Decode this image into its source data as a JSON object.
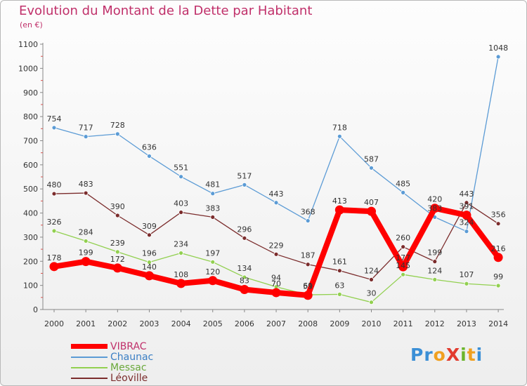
{
  "title": "Evolution du Montant de la Dette par Habitant",
  "unit_label": "(en €)",
  "logo": {
    "letters": [
      "P",
      "r",
      "o",
      "X",
      "i",
      "t",
      "i"
    ],
    "colors": [
      "#3b8fd6",
      "#3b8fd6",
      "#f0a020",
      "#e23b2e",
      "#6bb52b",
      "#f0a020",
      "#3b8fd6"
    ]
  },
  "chart_data": {
    "type": "line",
    "x": [
      "2000",
      "2001",
      "2002",
      "2003",
      "2004",
      "2005",
      "2006",
      "2007",
      "2008",
      "2009",
      "2010",
      "2011",
      "2012",
      "2013",
      "2014"
    ],
    "ylim": [
      0,
      1100
    ],
    "yticks": [
      0,
      100,
      200,
      300,
      400,
      500,
      600,
      700,
      800,
      900,
      1000,
      1100
    ],
    "grid": false,
    "legend_position": "bottom-left",
    "series": [
      {
        "name": "VIBRAC",
        "color": "#ff0000",
        "values": [
          178,
          199,
          172,
          140,
          108,
          120,
          83,
          70,
          59,
          413,
          407,
          177,
          420,
          391,
          216
        ],
        "labels": [
          "178",
          "199",
          "172",
          "140",
          "108",
          "120",
          "83",
          "70",
          "59",
          "413",
          "407",
          "177",
          "420",
          "391",
          "216"
        ]
      },
      {
        "name": "Chaunac",
        "color": "#5b9bd5",
        "values": [
          754,
          717,
          728,
          636,
          551,
          481,
          517,
          443,
          368,
          718,
          587,
          485,
          383,
          324,
          1048
        ],
        "labels": [
          "754",
          "717",
          "728",
          "636",
          "551",
          "481",
          "517",
          "443",
          "368",
          "718",
          "587",
          "485",
          "383",
          "324",
          "1048"
        ]
      },
      {
        "name": "Messac",
        "color": "#92d050",
        "values": [
          326,
          284,
          239,
          196,
          234,
          197,
          134,
          94,
          61,
          63,
          30,
          145,
          124,
          107,
          99
        ],
        "labels": [
          "326",
          "284",
          "239",
          "196",
          "234",
          "197",
          "134",
          "94",
          "61",
          "63",
          "30",
          "145",
          "124",
          "107",
          "99"
        ]
      },
      {
        "name": "Léoville",
        "color": "#7b2c2c",
        "values": [
          480,
          483,
          390,
          309,
          403,
          383,
          296,
          229,
          187,
          161,
          124,
          260,
          199,
          443,
          356
        ],
        "labels": [
          "480",
          "483",
          "390",
          "309",
          "403",
          "383",
          "296",
          "229",
          "187",
          "161",
          "124",
          "260",
          "199",
          "443",
          "356"
        ]
      }
    ]
  }
}
